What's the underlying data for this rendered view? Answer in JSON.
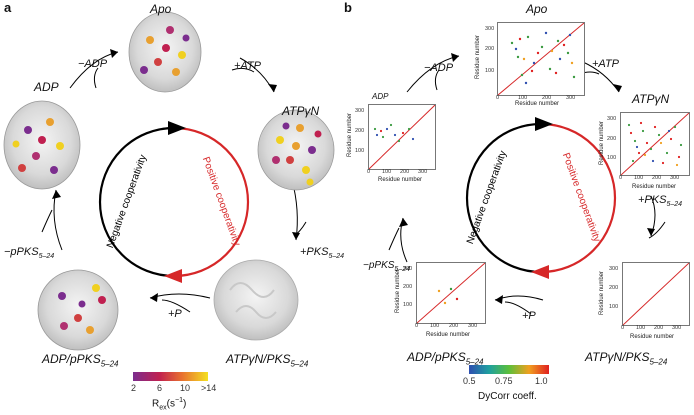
{
  "panels": {
    "a": {
      "label": "a"
    },
    "b": {
      "label": "b"
    }
  },
  "states": {
    "apo": "Apo",
    "atp_main": "ATPγN",
    "atp_pks_main": "ATPγN/PKS",
    "adp_ppks_main": "ADP/pPKS",
    "adp": "ADP",
    "sub": "5–24"
  },
  "transitions": {
    "plus_atp": "+ATP",
    "minus_adp": "−ADP",
    "plus_pks": "+PKS",
    "plus_p": "+P",
    "minus_ppks": "−pPKS"
  },
  "cooperativity": {
    "positive": "Positive cooperativity",
    "negative": "Negative cooperativity",
    "positive_color": "#d62728",
    "negative_color": "#000000"
  },
  "colorbar_a": {
    "ticks": [
      "2",
      "6",
      "10",
      ">14"
    ],
    "label_main": "R",
    "label_sub": "ex",
    "label_unit": "(s",
    "label_exp": "−1",
    "label_close": ")"
  },
  "colorbar_b": {
    "ticks": [
      "0.5",
      "0.75",
      "1.0"
    ],
    "label": "DyCorr coeff."
  },
  "residue_plots": {
    "xlabel": "Residue number",
    "ylabel": "Residue number",
    "ticks": [
      "0",
      "100",
      "200",
      "300"
    ]
  }
}
